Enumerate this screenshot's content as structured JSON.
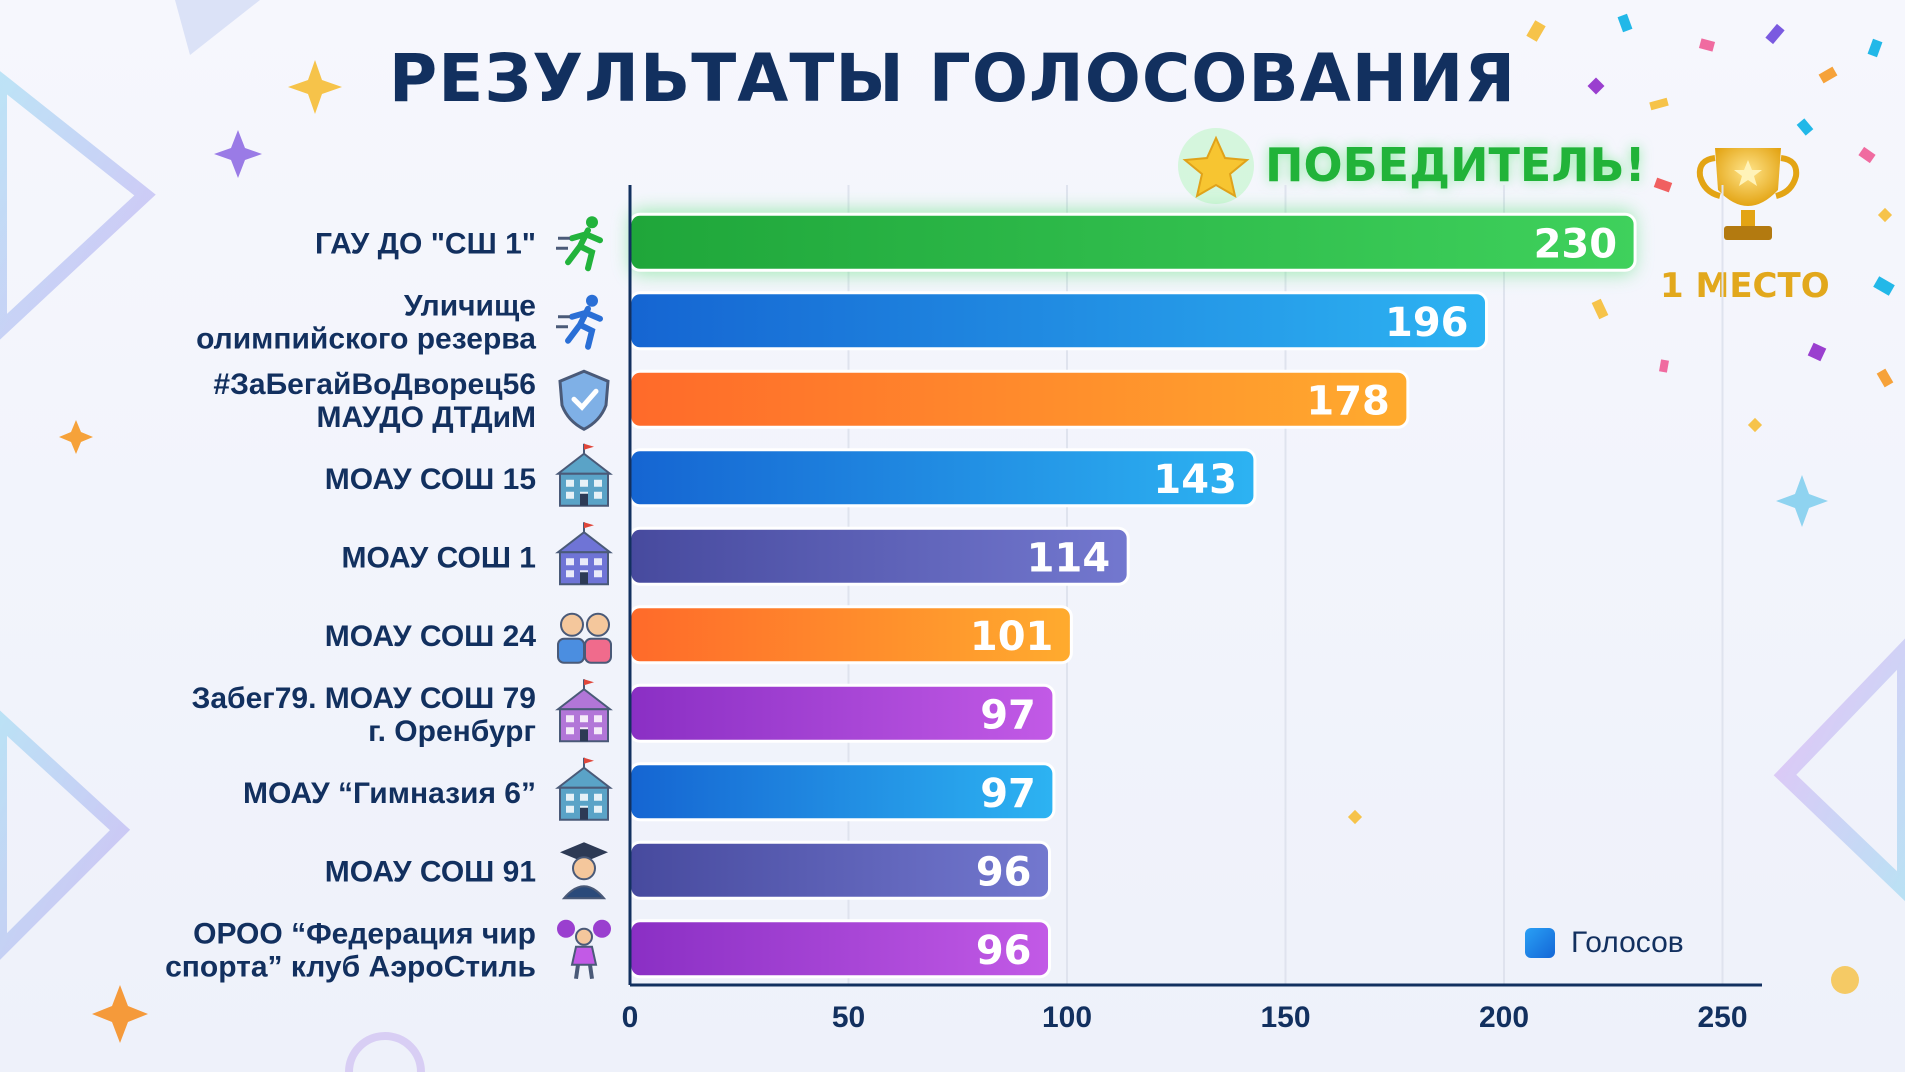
{
  "title": "РЕЗУЛЬТАТЫ ГОЛОСОВАНИЯ",
  "winner_label": "ПОБЕДИТЕЛЬ!",
  "place_label": "1 МЕСТО",
  "legend_label": "Голосов",
  "colors": {
    "title": "#12305f",
    "green": "#22b33c",
    "blue": "#1f8fe8",
    "orange": "#ff7a24",
    "indigo": "#5a5bb0",
    "purple": "#9a3fcf",
    "gold": "#e2a81c"
  },
  "chart_data": {
    "type": "bar",
    "orientation": "horizontal",
    "categories": [
      [
        "ГАУ ДО \"СШ 1\""
      ],
      [
        "Уличище",
        "олимпийского резерва"
      ],
      [
        "#ЗаБегайВоДворец56",
        "МАУДО ДТДиМ"
      ],
      [
        "МОАУ СОШ 15"
      ],
      [
        "МОАУ СОШ 1"
      ],
      [
        "МОАУ СОШ 24"
      ],
      [
        "Забег79. МОАУ СОШ 79",
        "г. Оренбург"
      ],
      [
        "МОАУ “Гимназия 6”"
      ],
      [
        "МОАУ СОШ 91"
      ],
      [
        "ОРОО “Федерация чир",
        "спорта” клуб АэроСтиль"
      ]
    ],
    "series": [
      {
        "name": "Голосов",
        "values": [
          230,
          196,
          178,
          143,
          114,
          101,
          97,
          97,
          96,
          96
        ]
      }
    ],
    "bar_colors": [
      "green",
      "blue",
      "orange",
      "blue",
      "indigo",
      "orange",
      "purple",
      "blue",
      "indigo",
      "purple"
    ],
    "icons": [
      "runner-green-icon",
      "runner-blue-icon",
      "shield-check-icon",
      "school-building-icon",
      "school-building-icon",
      "students-icon",
      "school-house-icon",
      "gymnasium-building-icon",
      "graduate-icon",
      "cheerleader-icon"
    ],
    "xlim": [
      0,
      260
    ],
    "xticks": [
      0,
      50,
      100,
      150,
      200,
      250
    ],
    "grid": true,
    "legend_position": "bottom-right"
  }
}
